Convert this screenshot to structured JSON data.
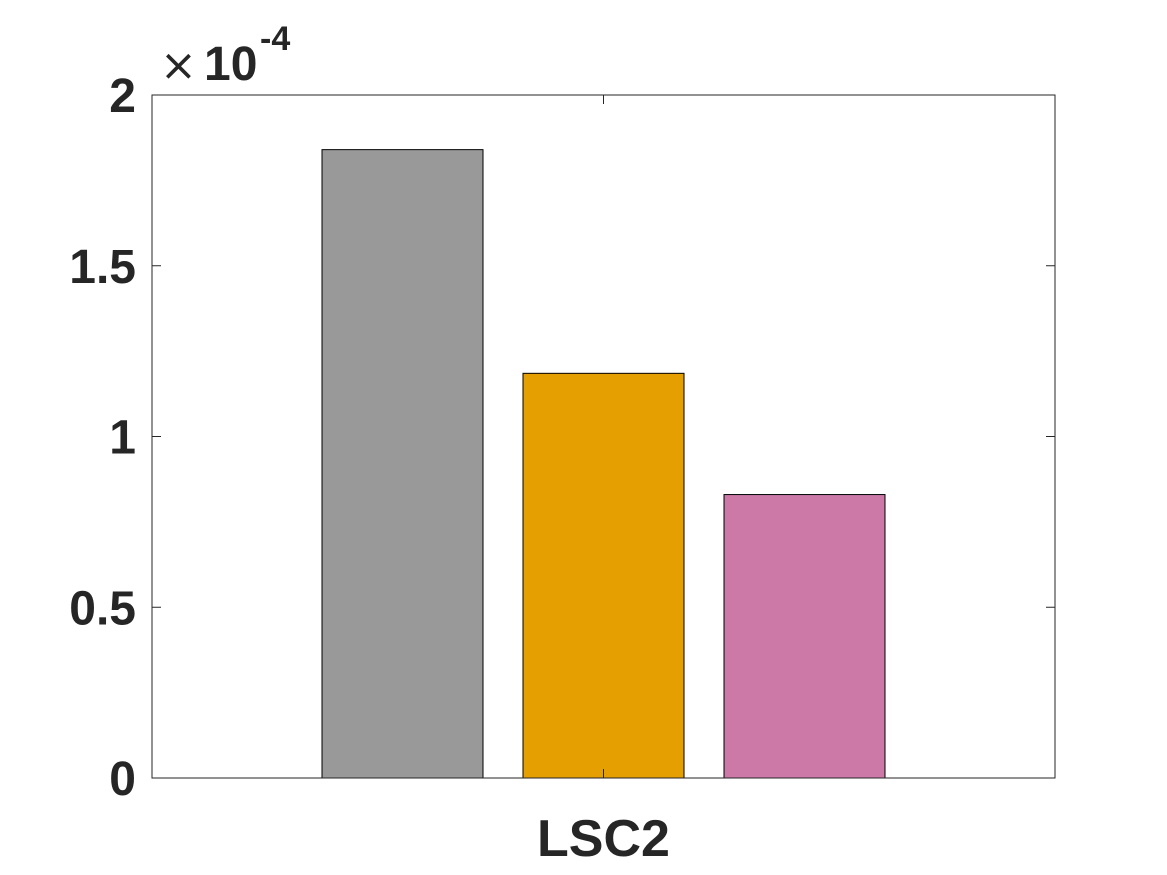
{
  "chart_data": {
    "type": "bar",
    "categories": [
      "LSC2"
    ],
    "series": [
      {
        "values": [
          1.84
        ],
        "color": "#999999"
      },
      {
        "values": [
          1.185
        ],
        "color": "#E69F00"
      },
      {
        "values": [
          0.83
        ],
        "color": "#CC79A7"
      }
    ],
    "ylim": [
      0,
      2
    ],
    "yticks": [
      0,
      0.5,
      1,
      1.5,
      2
    ],
    "ytick_labels": [
      "0",
      "0.5",
      "1",
      "1.5",
      "2"
    ],
    "y_exponent_label": {
      "times": "×",
      "base": "10",
      "exponent": "-4"
    },
    "grid": false,
    "title": "",
    "xlabel": "",
    "ylabel": ""
  }
}
